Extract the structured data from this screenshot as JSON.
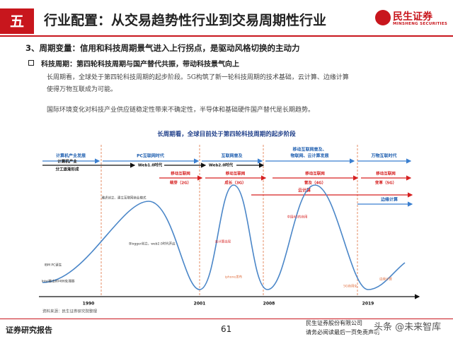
{
  "header": {
    "section": "五",
    "title": "行业配置：从交易趋势性行业到交易周期性行业",
    "logo_cn": "民生证券",
    "logo_en": "MINSHENG SECURITIES"
  },
  "subtitle": "3、周期变量：信用和科技周期景气进入上行拐点，是驱动风格切换的主动力",
  "bullet": "科技周期：第四轮科技周期与国产替代共振，带动科技景气向上",
  "paragraphs": [
    "长周期看，全球处于第四轮科技周期的起步阶段。5G构筑了新一轮科技周期的技术基础，云计算、边缘计算",
    "使得万物互联成为可能。",
    "国际环境变化对科技产业供应链稳定性带来不确定性，半导体和基础硬件国产替代是长期趋势。"
  ],
  "diagram": {
    "title": "长周期看，全球目前处于第四轮科技周期的起步阶段",
    "eras": [
      [
        "计算机产业发展"
      ],
      [
        "PC互联网时代"
      ],
      [
        "互联网普及"
      ],
      [
        "移动互联网普及、",
        "物联网、云计算发展"
      ],
      [
        "万物互联时代"
      ]
    ],
    "stage": [
      "计算机产业",
      "分工逐渐形成"
    ],
    "web": [
      "Web1.0时代",
      "Web2.0时代"
    ],
    "mobile": [
      [
        "移动互联网",
        "萌芽（2G）"
      ],
      [
        "移动互联网",
        "成长（3G）"
      ],
      [
        "移动互联网",
        "普及（4G）"
      ],
      [
        "移动互联网",
        "变革（5G）"
      ]
    ],
    "cloud": "云计算",
    "edge": "边缘计算",
    "years": [
      "1990",
      "2001",
      "2008",
      "2019"
    ],
    "notes": [
      "IBM PC诞生",
      "Intel推出80486处理器",
      "雅虎创立、建立互联网商业模式",
      "Blogger创立，web2.0时代开启",
      "云计算出现",
      "iphone发布",
      "中国4G的商用",
      "5G商用化",
      "边缘计算"
    ],
    "source": "资料来源：民生证券研究院整理"
  },
  "footer": {
    "left": "证券研究报告",
    "page": "61",
    "company": "民生证券股份有限公司",
    "disclaimer": "请务必阅读最后一页免责声明",
    "watermark": "头条 @未来智库"
  }
}
